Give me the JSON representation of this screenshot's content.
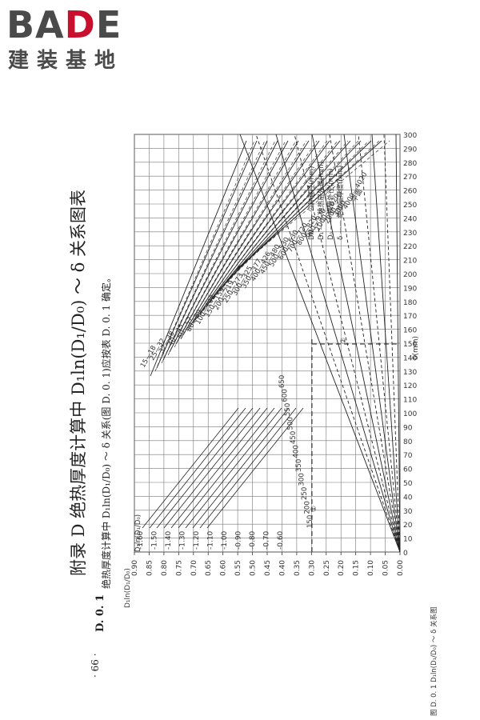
{
  "logo": {
    "word_prefix": "BA",
    "word_accent": "D",
    "word_suffix": "E",
    "subtitle": "建装基地"
  },
  "page": {
    "number": "· 66 ·"
  },
  "appendix": {
    "title": "附录 D  绝热厚度计算中 D₁ln(D₁/D₀) ～ δ 关系图表"
  },
  "section": {
    "id": "D. 0. 1",
    "text": "绝热厚度计算中 D₁ln(D₁/D₀) ～ δ 关系(图 D. 0. 1)应按表 D. 0. 1 确定。"
  },
  "chart": {
    "left_axis_header": "D₁ln(D₁/D₀)",
    "left_axis_ticks": [
      "0.00",
      "0.05",
      "0.10",
      "0.15",
      "0.20",
      "0.25",
      "0.30",
      "0.35",
      "0.40",
      "0.45",
      "0.50",
      "0.55",
      "0.60",
      "0.65",
      "0.70",
      "0.75",
      "0.80",
      "0.85",
      "0.90"
    ],
    "inner_axis_header": "D₁ln(D₁/D₀)",
    "inner_axis_ticks": [
      "-0.60",
      "-0.70",
      "-0.80",
      "-0.90",
      "-1.00",
      "-1.10",
      "-1.20",
      "-1.30",
      "-1.40",
      "-1.50",
      "-1.60"
    ],
    "bottom_axis_label": "δ(mm)",
    "bottom_ticks": [
      "0",
      "10",
      "20",
      "30",
      "40",
      "50",
      "60",
      "70",
      "80",
      "90",
      "100",
      "110",
      "120",
      "130",
      "140",
      "150",
      "160",
      "170",
      "180",
      "190",
      "200",
      "210",
      "220",
      "230",
      "240",
      "250",
      "260",
      "270",
      "280",
      "290",
      "300"
    ],
    "inset_ticks": [
      "150",
      "200",
      "250",
      "300",
      "350",
      "400",
      "450",
      "500",
      "550",
      "600",
      "650"
    ],
    "markers": [
      "①",
      "②"
    ],
    "legend": [
      "DN —— 公称直径(mm)",
      "D₁ —— 绝热层外径(mm)",
      "D₀ —— 裸管外径(mm)",
      "δ —— 绝热层厚度(mm)"
    ],
    "dn_labels": [
      "15—18",
      "25—32",
      "32—38",
      "40—45",
      "50—57",
      "80—89",
      "100—108",
      "150—159",
      "200—219",
      "250—273",
      "300—325",
      "350—377",
      "400—426",
      "450—480",
      "500—530",
      "600—630",
      "700—720",
      "800—820",
      "900—920",
      "1000—1020",
      "2000",
      "3000",
      "4000—4020",
      "平面"
    ],
    "caption_partial": "图 D. 0. 1  D₁ln(D₁/D₀) ～ δ 关系图"
  }
}
